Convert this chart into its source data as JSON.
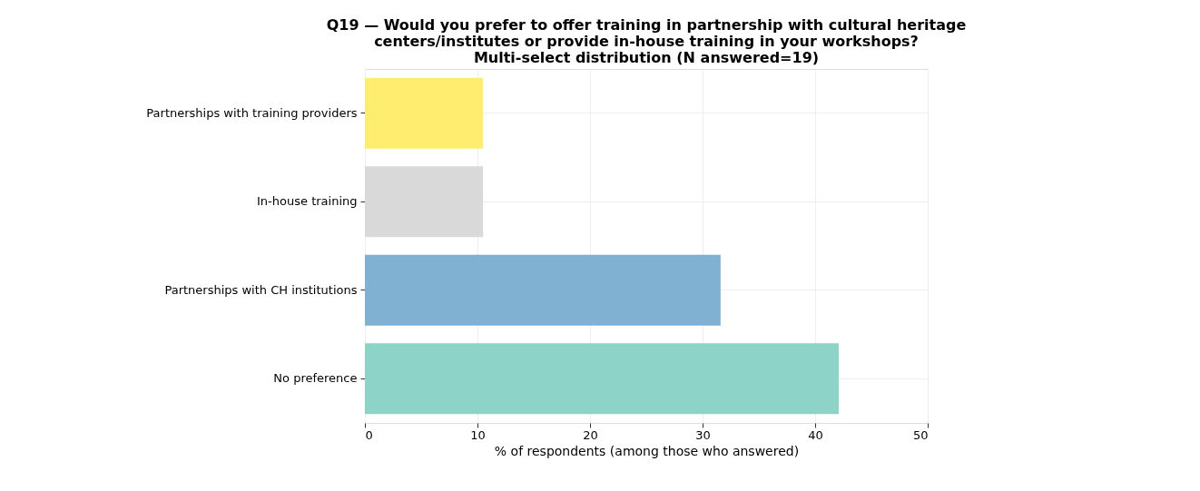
{
  "chart_data": {
    "type": "bar",
    "orientation": "horizontal",
    "title": "Q19 — Would you prefer to offer training in partnership with cultural heritage\ncenters/institutes or provide in-house training in your workshops?\nMulti-select distribution (N answered=19)",
    "categories": [
      "Partnerships with training providers",
      "In-house training",
      "Partnerships with CH institutions",
      "No preference"
    ],
    "values": [
      10.5,
      10.5,
      31.6,
      42.1
    ],
    "colors": [
      "#ffed6f",
      "#d9d9d9",
      "#80b1d3",
      "#8dd3c7"
    ],
    "xlabel": "% of respondents (among those who answered)",
    "xlim": [
      0,
      50
    ],
    "xticks": [
      0,
      10,
      20,
      30,
      40,
      50
    ],
    "grid": true
  }
}
